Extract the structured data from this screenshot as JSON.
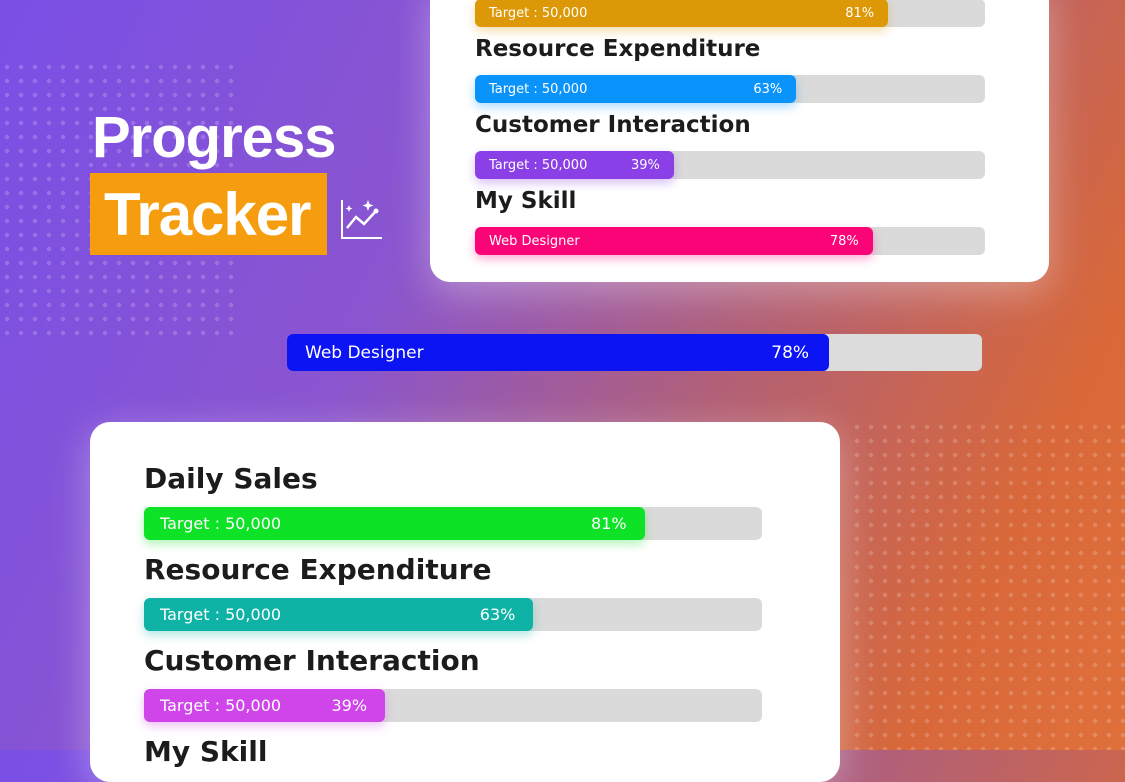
{
  "title": {
    "line1": "Progress",
    "line2": "Tracker",
    "icon": "chart-sparkle-icon"
  },
  "top_card": {
    "items": [
      {
        "label": "",
        "bar_text": "Target : 50,000",
        "percent_text": "81%",
        "value": 81,
        "color": "#dc9806"
      },
      {
        "label": "Resource Expenditure",
        "bar_text": "Target : 50,000",
        "percent_text": "63%",
        "value": 63,
        "color": "#0a94fb"
      },
      {
        "label": "Customer Interaction",
        "bar_text": "Target : 50,000",
        "percent_text": "39%",
        "value": 39,
        "color": "#8b3fe6"
      },
      {
        "label": "My Skill",
        "bar_text": "Web Designer",
        "percent_text": "78%",
        "value": 78,
        "color": "#fb0478"
      }
    ]
  },
  "middle_bar": {
    "bar_text": "Web Designer",
    "percent_text": "78%",
    "value": 78,
    "color": "#0c14f4"
  },
  "bottom_card": {
    "items": [
      {
        "label": "Daily Sales",
        "bar_text": "Target : 50,000",
        "percent_text": "81%",
        "value": 81,
        "color": "#0ee227"
      },
      {
        "label": "Resource Expenditure",
        "bar_text": "Target : 50,000",
        "percent_text": "63%",
        "value": 63,
        "color": "#0eb3a6"
      },
      {
        "label": "Customer Interaction",
        "bar_text": "Target : 50,000",
        "percent_text": "39%",
        "value": 39,
        "color": "#cf45ea"
      },
      {
        "label": "My Skill"
      }
    ]
  }
}
